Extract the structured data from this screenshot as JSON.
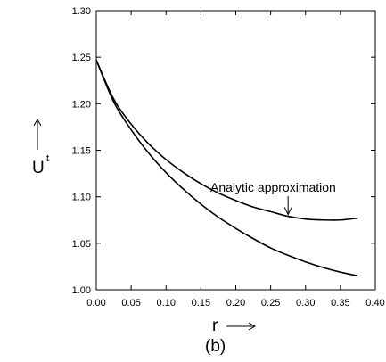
{
  "chart_data": {
    "type": "line",
    "xlim": [
      0.0,
      0.4
    ],
    "ylim": [
      1.0,
      1.3
    ],
    "x_ticks": [
      "0.00",
      "0.05",
      "0.10",
      "0.15",
      "0.20",
      "0.25",
      "0.30",
      "0.35",
      "0.40"
    ],
    "y_ticks": [
      "1.00",
      "1.05",
      "1.10",
      "1.15",
      "1.20",
      "1.25",
      "1.30"
    ],
    "x_tick_values": [
      0.0,
      0.05,
      0.1,
      0.15,
      0.2,
      0.25,
      0.3,
      0.35,
      0.4
    ],
    "y_tick_values": [
      1.0,
      1.05,
      1.1,
      1.15,
      1.2,
      1.25,
      1.3
    ],
    "xlabel": "r",
    "ylabel": "U",
    "ylabel_sup": "t",
    "caption": "(b)",
    "grid": false,
    "legend": "none",
    "series": [
      {
        "x": [
          0.0,
          0.025,
          0.05,
          0.075,
          0.1,
          0.125,
          0.15,
          0.175,
          0.2,
          0.225,
          0.25,
          0.275,
          0.3,
          0.325,
          0.35,
          0.375
        ],
        "y": [
          1.247,
          1.205,
          1.178,
          1.157,
          1.14,
          1.126,
          1.114,
          1.104,
          1.096,
          1.089,
          1.084,
          1.079,
          1.076,
          1.075,
          1.075,
          1.077
        ]
      },
      {
        "x": [
          0.0,
          0.025,
          0.05,
          0.075,
          0.1,
          0.125,
          0.15,
          0.175,
          0.2,
          0.225,
          0.25,
          0.275,
          0.3,
          0.325,
          0.35,
          0.375
        ],
        "y": [
          1.247,
          1.202,
          1.172,
          1.147,
          1.126,
          1.108,
          1.092,
          1.078,
          1.066,
          1.055,
          1.045,
          1.037,
          1.03,
          1.024,
          1.019,
          1.015
        ]
      }
    ],
    "annotations": [
      {
        "text": "Analytic approximation",
        "x": 0.275,
        "y": 1.08
      }
    ]
  }
}
